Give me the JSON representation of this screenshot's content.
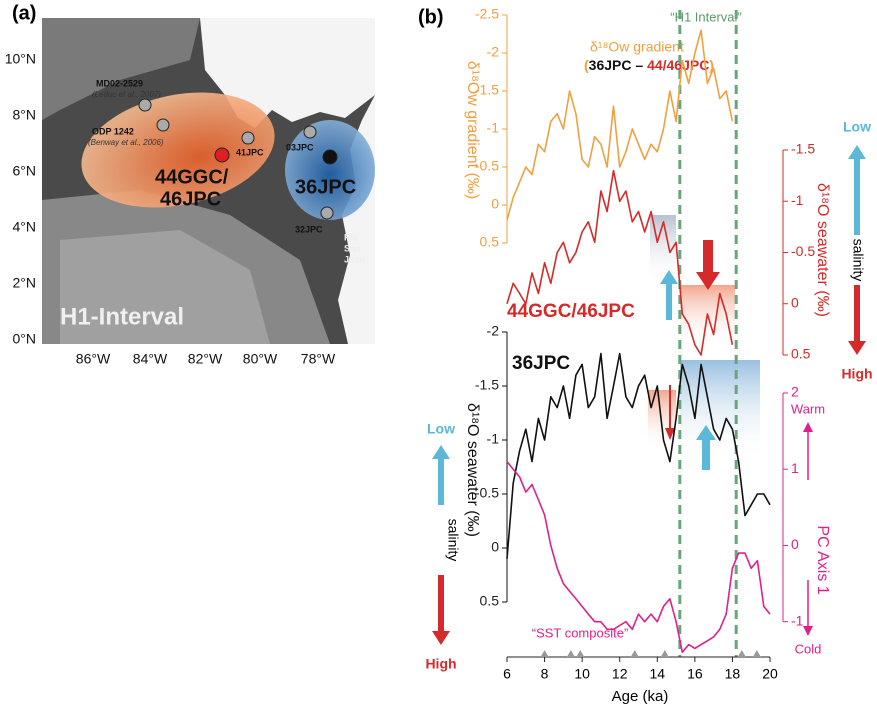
{
  "panel_a": {
    "label": "(a)",
    "lat_labels": [
      "10°N",
      "8°N",
      "6°N",
      "4°N",
      "2°N",
      "0°N"
    ],
    "lon_labels": [
      "86°W",
      "84°W",
      "82°W",
      "80°W",
      "78°W"
    ],
    "sites": [
      {
        "name": "MD02-2529",
        "ref": "(Leduc et al., 2007)"
      },
      {
        "name": "ODP 1242",
        "ref": "(Benway et al., 2006)"
      },
      {
        "name": "41JPC"
      },
      {
        "name": "03JPC"
      },
      {
        "name": "32JPC"
      }
    ],
    "region_labels": [
      "44GGC/",
      "46JPC",
      "36JPC"
    ],
    "river": [
      "Rio",
      "San",
      "Juan"
    ],
    "interval": "H1-Interval"
  },
  "chart_data": {
    "type": "line",
    "panel_label": "(b)",
    "x_label": "Age (ka)",
    "xlim": [
      6,
      20
    ],
    "xticks": [
      6,
      8,
      10,
      12,
      14,
      16,
      18,
      20
    ],
    "h1_label": "“H1 Interval”",
    "h1_interval": [
      15.2,
      18.2
    ],
    "sst_label": "“SST composite”",
    "sst_ages": [
      8,
      9.4,
      9.9,
      12.8,
      14.4,
      18.5,
      19.3
    ],
    "gradient_formula": [
      "(",
      "36JPC",
      " – ",
      "44/46JPC",
      ")"
    ],
    "salinity": {
      "low": "Low",
      "word": "salinity",
      "high": "High"
    },
    "pc_labels": {
      "warm": "Warm",
      "cold": "Cold"
    },
    "x": [
      6,
      6.33,
      6.67,
      7,
      7.33,
      7.67,
      8,
      8.33,
      8.67,
      9,
      9.33,
      9.67,
      10,
      10.33,
      10.67,
      11,
      11.33,
      11.67,
      12,
      12.33,
      12.67,
      13,
      13.33,
      13.67,
      14,
      14.33,
      14.67,
      15,
      15.33,
      15.67,
      16,
      16.33,
      16.67,
      17,
      17.33,
      17.67,
      18,
      18.33,
      18.67,
      19,
      19.33,
      19.67,
      20
    ],
    "series": [
      {
        "name": "δ¹⁸Ow gradient",
        "color": "#f0a040",
        "side": "left",
        "inverted": true,
        "axis_label": "δ¹⁸Ow gradient (‰)",
        "ylim": [
          -2.5,
          0.5
        ],
        "yticks": [
          -2.5,
          -2,
          -1.5,
          -1,
          -0.5,
          0,
          0.5
        ],
        "values": [
          0.2,
          -0.1,
          -0.3,
          -0.5,
          -0.4,
          -0.8,
          -0.7,
          -1.1,
          -1.2,
          -1.0,
          -1.5,
          -1.2,
          -0.6,
          -0.5,
          -0.9,
          -0.8,
          -0.5,
          -1.3,
          -0.5,
          -0.7,
          -1.0,
          -0.8,
          -0.6,
          -0.8,
          -0.7,
          -1.0,
          -1.5,
          -1.1,
          -1.9,
          -1.6,
          -2.0,
          -2.3,
          -1.6,
          -1.8,
          -1.4,
          -1.5,
          -1.1,
          null,
          null,
          null,
          null,
          null,
          null
        ]
      },
      {
        "name": "44GGC/46JPC",
        "color": "#d42a2a",
        "side": "right",
        "inverted": true,
        "axis_label": "δ¹⁸O seawater (‰)",
        "ylim": [
          -1.5,
          0.5
        ],
        "yticks": [
          -1.5,
          -1,
          -0.5,
          0,
          0.5
        ],
        "values": [
          0,
          -0.2,
          -0.1,
          0,
          -0.3,
          -0.1,
          -0.4,
          -0.2,
          -0.5,
          -0.6,
          -0.4,
          -0.5,
          -0.7,
          -0.8,
          -0.6,
          -1.1,
          -0.9,
          -1.3,
          -1.0,
          -1.1,
          -0.8,
          -0.9,
          -0.7,
          -0.9,
          -0.6,
          -0.8,
          -0.5,
          -0.6,
          0.1,
          0.2,
          0.4,
          0.5,
          0.1,
          0.3,
          -0.1,
          0.1,
          0.4,
          null,
          null,
          null,
          null,
          null,
          null
        ]
      },
      {
        "name": "36JPC",
        "color": "#111111",
        "side": "left",
        "inverted": true,
        "axis_label": "δ¹⁸O seawater (‰)",
        "ylim": [
          -2,
          0.5
        ],
        "yticks": [
          -2,
          -1.5,
          -1,
          -0.5,
          0,
          0.5
        ],
        "values": [
          0.1,
          -0.6,
          -0.9,
          -1.1,
          -0.8,
          -1.2,
          -1.0,
          -1.4,
          -1.3,
          -1.5,
          -1.2,
          -1.6,
          -1.7,
          -1.3,
          -1.4,
          -1.8,
          -1.2,
          -1.5,
          -1.8,
          -1.4,
          -1.3,
          -1.5,
          -1.6,
          -1.3,
          -1.5,
          -1.0,
          -0.8,
          -1.2,
          -1.7,
          -1.5,
          -1.2,
          -1.7,
          -1.4,
          -1.1,
          -1.0,
          -1.2,
          -1.1,
          -0.8,
          -0.3,
          -0.4,
          -0.5,
          -0.5,
          -0.4
        ]
      },
      {
        "color": "#e0208a",
        "side": "right",
        "inverted": false,
        "axis_label": "PC Axis 1",
        "ylim": [
          -1.45,
          2
        ],
        "yticks": [
          2,
          1,
          0,
          -1
        ],
        "values": [
          1.1,
          1.0,
          0.9,
          0.7,
          0.8,
          0.6,
          0.4,
          0.0,
          -0.3,
          -0.5,
          -0.6,
          -0.7,
          -0.8,
          -0.9,
          -1.0,
          -1.0,
          -1.1,
          -1.1,
          -1.05,
          -1.0,
          -1.1,
          -0.9,
          -1.0,
          -0.9,
          -1.0,
          -0.8,
          -0.7,
          -1.0,
          -1.4,
          -1.3,
          -1.35,
          -1.3,
          -1.25,
          -1.2,
          -1.1,
          -0.9,
          -0.3,
          -0.1,
          -0.1,
          -0.3,
          -0.2,
          -0.8,
          -0.9
        ]
      }
    ]
  }
}
